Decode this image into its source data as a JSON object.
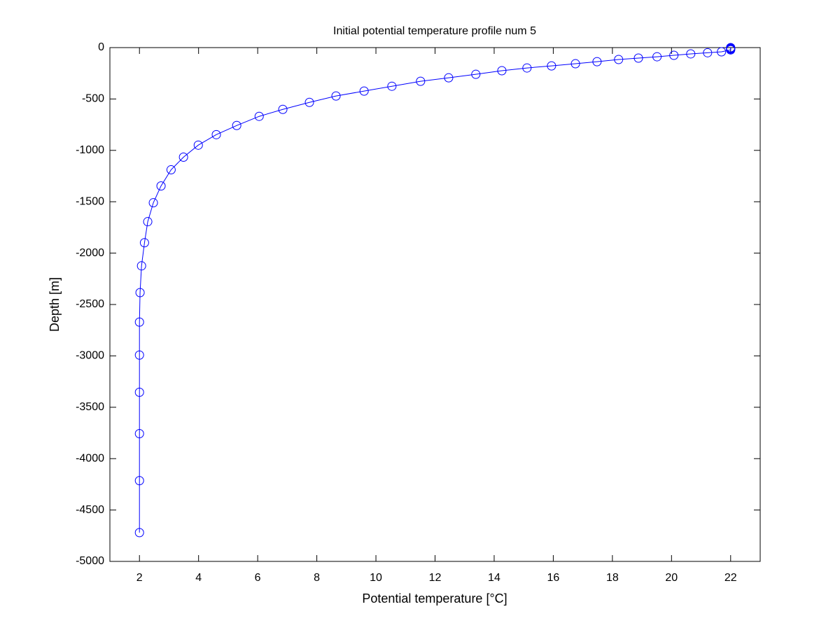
{
  "chart_data": {
    "type": "line",
    "title": "Initial potential temperature profile num 5",
    "x_label": "Potential temperature [°C]",
    "y_label": "Depth [m]",
    "xlim": [
      1,
      23
    ],
    "ylim": [
      -5000,
      0
    ],
    "xticks": [
      2,
      4,
      6,
      8,
      10,
      12,
      14,
      16,
      18,
      20,
      22
    ],
    "yticks": [
      0,
      -500,
      -1000,
      -1500,
      -2000,
      -2500,
      -3000,
      -3500,
      -4000,
      -4500,
      -5000
    ],
    "grid": false,
    "series": [
      {
        "color": "#0000ff",
        "marker": "circle",
        "x": [
          22,
          22,
          22,
          22,
          22,
          21.69,
          21.22,
          20.65,
          20.08,
          19.51,
          18.88,
          18.21,
          17.48,
          16.75,
          15.94,
          15.11,
          14.26,
          13.38,
          12.46,
          11.51,
          10.54,
          9.6,
          8.65,
          7.75,
          6.85,
          6.05,
          5.29,
          4.6,
          3.99,
          3.49,
          3.07,
          2.73,
          2.47,
          2.28,
          2.17,
          2.07,
          2.02,
          2.0,
          2.0,
          2.0,
          2.0,
          2.0,
          2.0
        ],
        "values": [
          0,
          -5,
          -10,
          -15,
          -22,
          -41,
          -50,
          -61,
          -75,
          -89,
          -102,
          -116,
          -137,
          -157,
          -178,
          -198,
          -225,
          -260,
          -294,
          -328,
          -376,
          -423,
          -471,
          -533,
          -601,
          -669,
          -758,
          -847,
          -949,
          -1066,
          -1189,
          -1346,
          -1510,
          -1694,
          -1899,
          -2124,
          -2384,
          -2671,
          -2992,
          -3354,
          -3757,
          -4214,
          -4720
        ]
      }
    ]
  }
}
